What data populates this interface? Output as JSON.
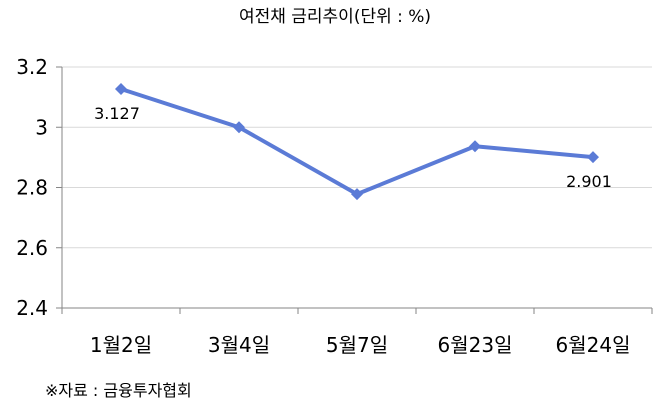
{
  "chart_data": {
    "type": "line",
    "title": "여전채 금리추이(단위 : %)",
    "categories": [
      "1월2일",
      "3월4일",
      "5월7일",
      "6월23일",
      "6월24일"
    ],
    "series": [
      {
        "values": [
          3.127,
          3.0,
          2.778,
          2.937,
          2.901
        ],
        "color": "#5B7BD6"
      }
    ],
    "data_labels": [
      {
        "index": 0,
        "text": "3.127"
      },
      {
        "index": 4,
        "text": "2.901"
      }
    ],
    "y_ticks": [
      "2.4",
      "2.6",
      "2.8",
      "3",
      "3.2"
    ],
    "ylim": [
      2.4,
      3.2
    ],
    "grid": true,
    "legend": "none",
    "xlabel": "",
    "ylabel": ""
  },
  "source": "※자료 : 금융투자협회",
  "colors": {
    "line": "#5B7BD6",
    "grid": "#D9D9D9",
    "axis": "#868686"
  }
}
